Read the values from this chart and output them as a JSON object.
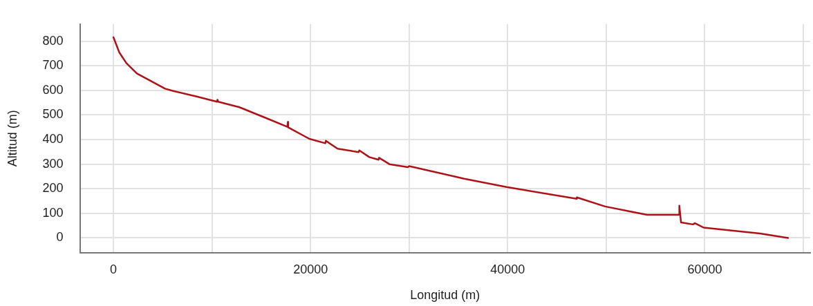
{
  "chart_data": {
    "type": "line",
    "xlabel": "Longitud (m)",
    "ylabel": "Altitud (m)",
    "x": [
      0,
      590,
      1310,
      2380,
      3810,
      5240,
      5950,
      8450,
      10500,
      10560,
      10620,
      12650,
      12700,
      15590,
      17650,
      17700,
      17730,
      19880,
      21500,
      21550,
      22740,
      24880,
      24950,
      25950,
      26900,
      26950,
      28000,
      29880,
      30000,
      35590,
      39880,
      47000,
      47020,
      49880,
      52730,
      54160,
      57380,
      57420,
      57590,
      58800,
      59000,
      59880,
      65590,
      68450
    ],
    "series": [
      {
        "color": "#b01116",
        "values": [
          816,
          755,
          711,
          669,
          638,
          607,
          599,
          575,
          554,
          562,
          554,
          533,
          533,
          486,
          452,
          472,
          450,
          403,
          385,
          395,
          363,
          349,
          356,
          329,
          318,
          326,
          300,
          288,
          292,
          241,
          207,
          159,
          165,
          128,
          105,
          94,
          94,
          131,
          63,
          55,
          60,
          42,
          18,
          0
        ]
      }
    ],
    "xlim": [
      -3400,
      70700
    ],
    "ylim": [
      -60,
      870
    ],
    "xticks": [
      0,
      {
        "value": 10000,
        "label": null
      },
      20000,
      {
        "value": 30000,
        "label": null
      },
      40000,
      {
        "value": 50000,
        "label": null
      },
      60000,
      {
        "value": 70000,
        "label": null
      }
    ],
    "yticks": [
      0,
      100,
      200,
      300,
      400,
      500,
      600,
      700,
      800
    ],
    "grid": true,
    "marker": "none",
    "line_style": "solid"
  }
}
